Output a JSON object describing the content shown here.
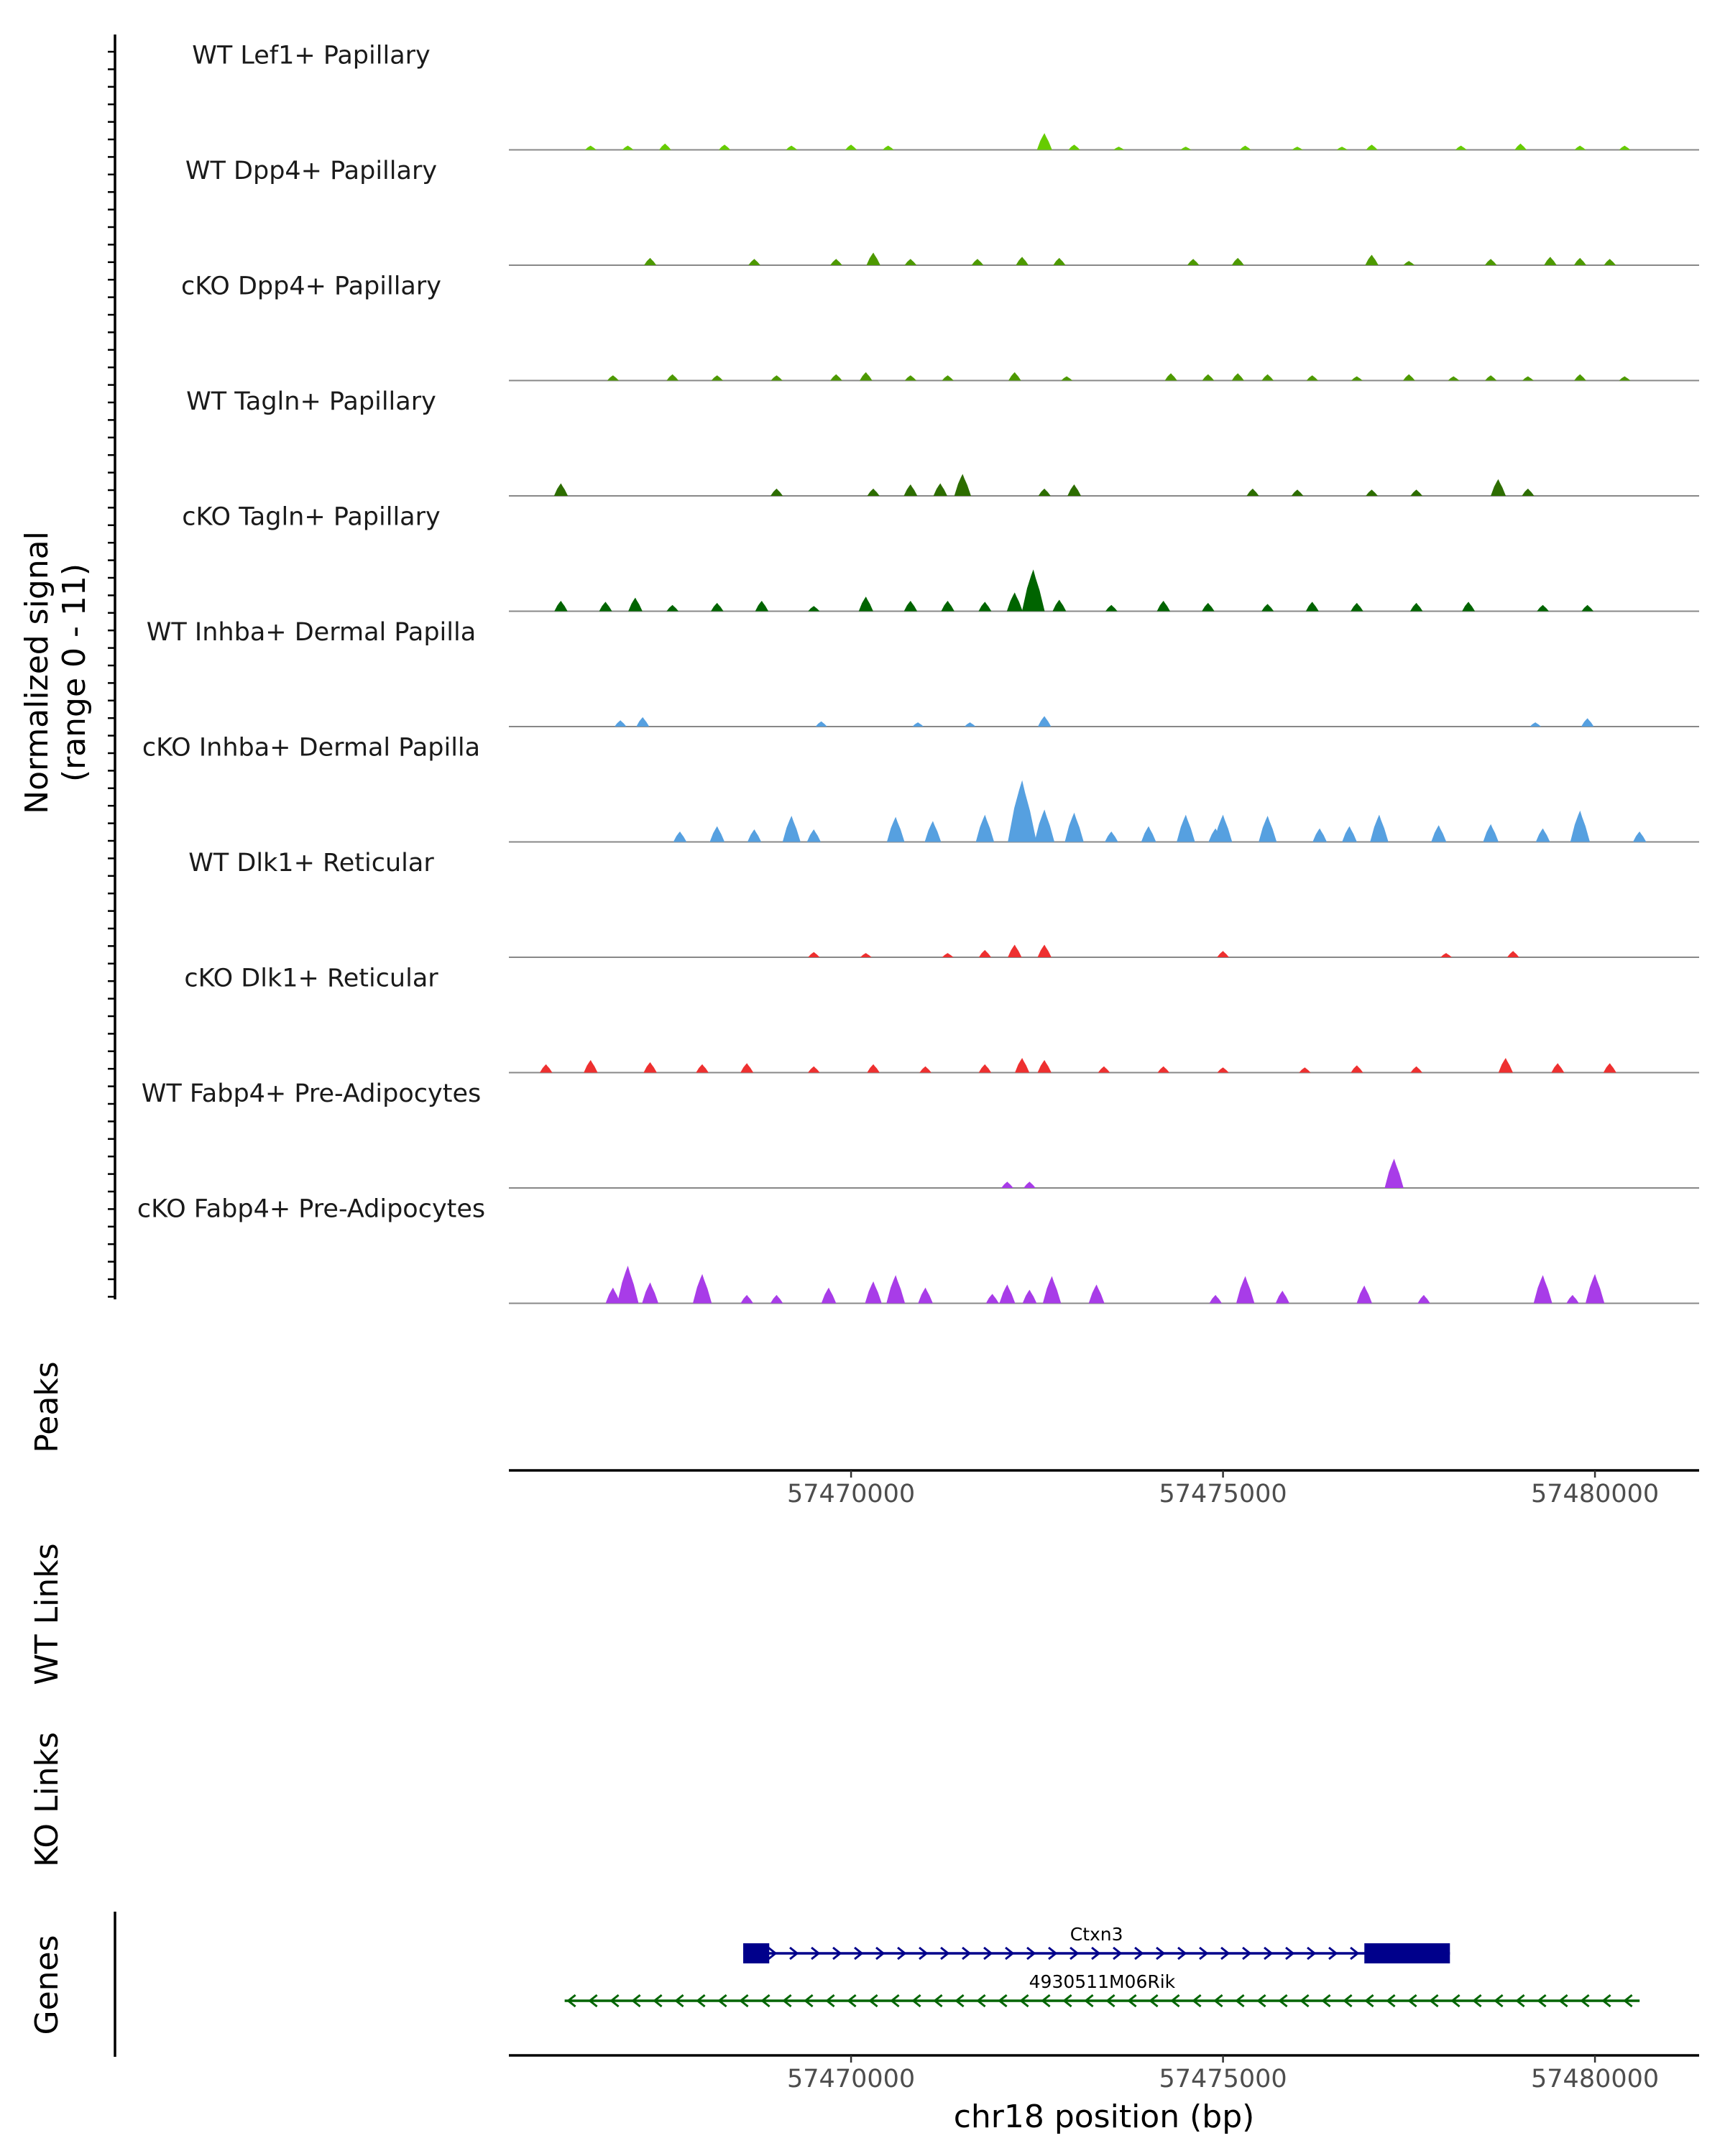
{
  "chart_data": {
    "type": "area",
    "title": "",
    "ylabel": "Normalized signal\n(range 0 - 11)",
    "ylabel_lines": [
      "Normalized signal",
      "(range 0 - 11)"
    ],
    "ylim": [
      0,
      11
    ],
    "xlabel": "chr18 position (bp)",
    "xlim": [
      57465400,
      57481400
    ],
    "x_ticks": [
      57470000,
      57475000,
      57480000
    ],
    "x_tick_labels": [
      "57470000",
      "57475000",
      "57480000"
    ],
    "tracks": [
      {
        "name": "WT Lef1+ Papillary",
        "color": "#66cc00",
        "peaks": [
          [
            57466500,
            0.4
          ],
          [
            57467000,
            0.4
          ],
          [
            57467500,
            0.6
          ],
          [
            57468300,
            0.5
          ],
          [
            57469200,
            0.4
          ],
          [
            57470000,
            0.5
          ],
          [
            57470500,
            0.4
          ],
          [
            57472600,
            1.6
          ],
          [
            57473000,
            0.5
          ],
          [
            57473600,
            0.3
          ],
          [
            57474500,
            0.3
          ],
          [
            57475300,
            0.4
          ],
          [
            57476000,
            0.3
          ],
          [
            57476600,
            0.3
          ],
          [
            57477000,
            0.5
          ],
          [
            57478200,
            0.4
          ],
          [
            57479000,
            0.6
          ],
          [
            57479800,
            0.4
          ],
          [
            57480400,
            0.4
          ]
        ]
      },
      {
        "name": "WT Dpp4+ Papillary",
        "color": "#4d9900",
        "peaks": [
          [
            57467300,
            0.7
          ],
          [
            57468700,
            0.6
          ],
          [
            57469800,
            0.6
          ],
          [
            57470300,
            1.2
          ],
          [
            57470800,
            0.6
          ],
          [
            57471700,
            0.6
          ],
          [
            57472300,
            0.8
          ],
          [
            57472800,
            0.7
          ],
          [
            57474600,
            0.6
          ],
          [
            57475200,
            0.7
          ],
          [
            57477000,
            1.0
          ],
          [
            57477500,
            0.4
          ],
          [
            57478600,
            0.6
          ],
          [
            57479400,
            0.8
          ],
          [
            57479800,
            0.7
          ],
          [
            57480200,
            0.6
          ]
        ]
      },
      {
        "name": "cKO Dpp4+ Papillary",
        "color": "#4d9900",
        "peaks": [
          [
            57466800,
            0.5
          ],
          [
            57467600,
            0.6
          ],
          [
            57468200,
            0.5
          ],
          [
            57469000,
            0.5
          ],
          [
            57469800,
            0.6
          ],
          [
            57470200,
            0.8
          ],
          [
            57470800,
            0.5
          ],
          [
            57471300,
            0.5
          ],
          [
            57472200,
            0.8
          ],
          [
            57472900,
            0.4
          ],
          [
            57474300,
            0.7
          ],
          [
            57474800,
            0.6
          ],
          [
            57475200,
            0.7
          ],
          [
            57475600,
            0.6
          ],
          [
            57476200,
            0.5
          ],
          [
            57476800,
            0.4
          ],
          [
            57477500,
            0.6
          ],
          [
            57478100,
            0.4
          ],
          [
            57478600,
            0.5
          ],
          [
            57479100,
            0.4
          ],
          [
            57479800,
            0.6
          ],
          [
            57480400,
            0.4
          ]
        ]
      },
      {
        "name": "WT Tagln+ Papillary",
        "color": "#2d6d00",
        "peaks": [
          [
            57466100,
            1.2
          ],
          [
            57469000,
            0.7
          ],
          [
            57470300,
            0.7
          ],
          [
            57470800,
            1.1
          ],
          [
            57471200,
            1.2
          ],
          [
            57471500,
            2.1
          ],
          [
            57472600,
            0.7
          ],
          [
            57473000,
            1.1
          ],
          [
            57475400,
            0.7
          ],
          [
            57476000,
            0.6
          ],
          [
            57477000,
            0.6
          ],
          [
            57477600,
            0.6
          ],
          [
            57478700,
            1.6
          ],
          [
            57479100,
            0.7
          ]
        ]
      },
      {
        "name": "cKO Tagln+ Papillary",
        "color": "#006400",
        "peaks": [
          [
            57466100,
            1.0
          ],
          [
            57466700,
            0.9
          ],
          [
            57467100,
            1.3
          ],
          [
            57467600,
            0.6
          ],
          [
            57468200,
            0.8
          ],
          [
            57468800,
            1.0
          ],
          [
            57469500,
            0.5
          ],
          [
            57470200,
            1.4
          ],
          [
            57470800,
            1.0
          ],
          [
            57471300,
            1.0
          ],
          [
            57471800,
            0.9
          ],
          [
            57472200,
            1.8
          ],
          [
            57472450,
            4.0
          ],
          [
            57472800,
            1.1
          ],
          [
            57473500,
            0.6
          ],
          [
            57474200,
            1.0
          ],
          [
            57474800,
            0.8
          ],
          [
            57475600,
            0.7
          ],
          [
            57476200,
            0.9
          ],
          [
            57476800,
            0.8
          ],
          [
            57477600,
            0.8
          ],
          [
            57478300,
            0.9
          ],
          [
            57479300,
            0.6
          ],
          [
            57479900,
            0.6
          ]
        ]
      },
      {
        "name": "WT Inhba+ Dermal Papilla",
        "color": "#56a0e0",
        "peaks": [
          [
            57466900,
            0.6
          ],
          [
            57467200,
            0.9
          ],
          [
            57469600,
            0.5
          ],
          [
            57470900,
            0.4
          ],
          [
            57471600,
            0.4
          ],
          [
            57472600,
            1.0
          ],
          [
            57479200,
            0.4
          ],
          [
            57479900,
            0.8
          ]
        ]
      },
      {
        "name": "cKO Inhba+ Dermal Papilla",
        "color": "#56a0e0",
        "peaks": [
          [
            57467700,
            1.0
          ],
          [
            57468200,
            1.5
          ],
          [
            57468700,
            1.2
          ],
          [
            57469200,
            2.5
          ],
          [
            57469500,
            1.2
          ],
          [
            57470600,
            2.4
          ],
          [
            57471100,
            2.0
          ],
          [
            57471800,
            2.6
          ],
          [
            57472300,
            5.9
          ],
          [
            57472600,
            3.1
          ],
          [
            57473000,
            2.8
          ],
          [
            57473500,
            1.0
          ],
          [
            57474000,
            1.5
          ],
          [
            57474500,
            2.6
          ],
          [
            57474900,
            1.3
          ],
          [
            57475000,
            2.6
          ],
          [
            57475600,
            2.5
          ],
          [
            57476300,
            1.3
          ],
          [
            57476700,
            1.5
          ],
          [
            57477100,
            2.6
          ],
          [
            57477900,
            1.6
          ],
          [
            57478600,
            1.7
          ],
          [
            57479300,
            1.3
          ],
          [
            57479800,
            3.0
          ],
          [
            57480600,
            1.0
          ]
        ]
      },
      {
        "name": "WT Dlk1+ Reticular",
        "color": "#ee3030",
        "peaks": [
          [
            57469500,
            0.5
          ],
          [
            57470200,
            0.4
          ],
          [
            57471300,
            0.4
          ],
          [
            57471800,
            0.7
          ],
          [
            57472200,
            1.2
          ],
          [
            57472600,
            1.2
          ],
          [
            57475000,
            0.6
          ],
          [
            57478000,
            0.4
          ],
          [
            57478900,
            0.6
          ]
        ]
      },
      {
        "name": "cKO Dlk1+ Reticular",
        "color": "#ee3030",
        "peaks": [
          [
            57465900,
            0.8
          ],
          [
            57466500,
            1.2
          ],
          [
            57467300,
            1.0
          ],
          [
            57468000,
            0.8
          ],
          [
            57468600,
            0.9
          ],
          [
            57469500,
            0.6
          ],
          [
            57470300,
            0.8
          ],
          [
            57471000,
            0.6
          ],
          [
            57471800,
            0.8
          ],
          [
            57472300,
            1.4
          ],
          [
            57472600,
            1.2
          ],
          [
            57473400,
            0.6
          ],
          [
            57474200,
            0.6
          ],
          [
            57475000,
            0.5
          ],
          [
            57476100,
            0.5
          ],
          [
            57476800,
            0.7
          ],
          [
            57477600,
            0.6
          ],
          [
            57478800,
            1.4
          ],
          [
            57479500,
            0.9
          ],
          [
            57480200,
            0.9
          ]
        ]
      },
      {
        "name": "WT Fabp4+ Pre-Adipocytes",
        "color": "#a83ce8",
        "peaks": [
          [
            57472100,
            0.6
          ],
          [
            57472400,
            0.6
          ],
          [
            57477300,
            2.8
          ]
        ]
      },
      {
        "name": "cKO Fabp4+ Pre-Adipocytes",
        "color": "#a83ce8",
        "peaks": [
          [
            57466800,
            1.5
          ],
          [
            57467000,
            3.6
          ],
          [
            57467300,
            2.0
          ],
          [
            57468000,
            2.8
          ],
          [
            57468600,
            0.8
          ],
          [
            57469000,
            0.8
          ],
          [
            57469700,
            1.5
          ],
          [
            57470300,
            2.1
          ],
          [
            57470600,
            2.7
          ],
          [
            57471000,
            1.5
          ],
          [
            57471900,
            0.9
          ],
          [
            57472100,
            1.8
          ],
          [
            57472400,
            1.3
          ],
          [
            57472700,
            2.6
          ],
          [
            57473300,
            1.8
          ],
          [
            57474900,
            0.8
          ],
          [
            57475300,
            2.6
          ],
          [
            57475800,
            1.2
          ],
          [
            57476900,
            1.7
          ],
          [
            57477700,
            0.8
          ],
          [
            57479300,
            2.7
          ],
          [
            57479700,
            0.8
          ],
          [
            57480000,
            2.8
          ]
        ]
      }
    ],
    "panels": {
      "peaks_label": "Peaks",
      "wt_links_label": "WT Links",
      "ko_links_label": "KO Links",
      "genes_label": "Genes"
    },
    "genes": [
      {
        "name": "Ctxn3",
        "start": 57468550,
        "end": 57478050,
        "strand": "+",
        "color": "#00008b",
        "exons": [
          [
            57468550,
            57468900
          ],
          [
            57476900,
            57478050
          ]
        ]
      },
      {
        "name": "4930511M06Rik",
        "start": 57466150,
        "end": 57480600,
        "strand": "-",
        "color": "#006400",
        "exons": []
      }
    ]
  }
}
